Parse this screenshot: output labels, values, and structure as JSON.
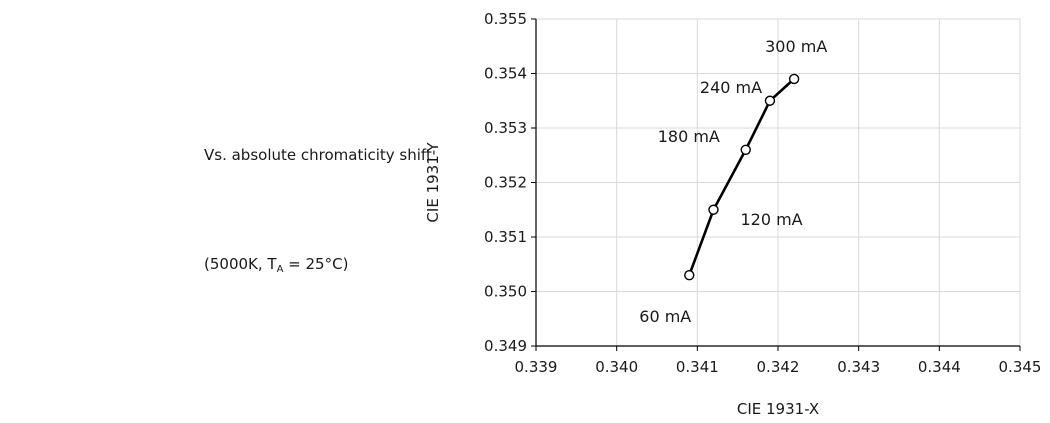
{
  "caption": {
    "line1": "Vs. absolute chromaticity shift",
    "line2_prefix": "(5000K, T",
    "line2_sub": "A",
    "line2_suffix": " = 25°C)"
  },
  "chart_data": {
    "type": "line",
    "title": "",
    "xlabel": "CIE 1931-X",
    "ylabel": "CIE 1931-Y",
    "xlim": [
      0.339,
      0.345
    ],
    "ylim": [
      0.349,
      0.355
    ],
    "x_ticks": [
      "0.339",
      "0.340",
      "0.341",
      "0.342",
      "0.343",
      "0.344",
      "0.345"
    ],
    "y_ticks": [
      "0.349",
      "0.350",
      "0.351",
      "0.352",
      "0.353",
      "0.354",
      "0.355"
    ],
    "grid": true,
    "series": [
      {
        "points": [
          {
            "x": 0.3409,
            "y": 0.3503,
            "label": "60 mA"
          },
          {
            "x": 0.3412,
            "y": 0.3515,
            "label": "120 mA"
          },
          {
            "x": 0.3416,
            "y": 0.3526,
            "label": "180 mA"
          },
          {
            "x": 0.3419,
            "y": 0.3535,
            "label": "240 mA"
          },
          {
            "x": 0.3422,
            "y": 0.3539,
            "label": "300 mA"
          }
        ]
      }
    ],
    "colors": {
      "line": "#000000",
      "grid": "#d9d9d9",
      "axis": "#000000"
    }
  }
}
